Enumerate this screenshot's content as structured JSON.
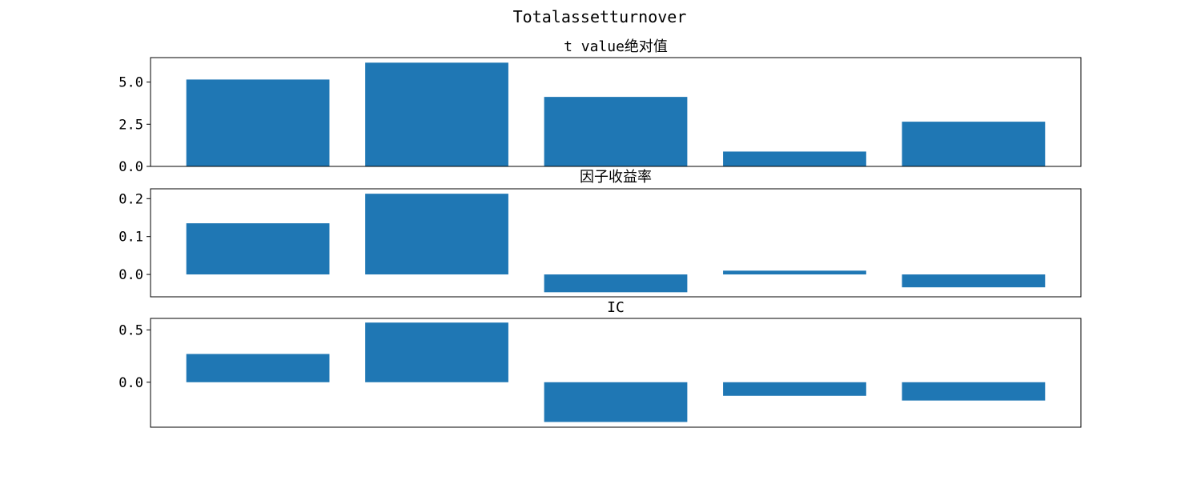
{
  "figure_title": "Totalassetturnover",
  "colors": {
    "bar": "#1f77b4",
    "axes": "#000000",
    "background": "#ffffff"
  },
  "chart_data": [
    {
      "type": "bar",
      "title": "t value绝对值",
      "categories": [
        "",
        "",
        "",
        "",
        ""
      ],
      "values": [
        5.15,
        6.15,
        4.12,
        0.88,
        2.65
      ],
      "ylim": [
        0,
        6.45
      ],
      "yticks": [
        0,
        2.5,
        5.0
      ],
      "ytick_labels": [
        "0.0",
        "2.5",
        "5.0"
      ],
      "xlabel": "",
      "ylabel": "",
      "grid": false,
      "legend": "none"
    },
    {
      "type": "bar",
      "title": "因子收益率",
      "categories": [
        "",
        "",
        "",
        "",
        ""
      ],
      "values": [
        0.135,
        0.213,
        -0.047,
        0.01,
        -0.034
      ],
      "ylim": [
        -0.059,
        0.226
      ],
      "yticks": [
        0,
        0.1,
        0.2
      ],
      "ytick_labels": [
        "0.0",
        "0.1",
        "0.2"
      ],
      "xlabel": "",
      "ylabel": "",
      "grid": false,
      "legend": "none"
    },
    {
      "type": "bar",
      "title": "IC",
      "categories": [
        "",
        "",
        "",
        "",
        ""
      ],
      "values": [
        0.27,
        0.57,
        -0.38,
        -0.13,
        -0.175
      ],
      "ylim": [
        -0.43,
        0.61
      ],
      "yticks": [
        0,
        0.5
      ],
      "ytick_labels": [
        "0.0",
        "0.5"
      ],
      "xlabel": "",
      "ylabel": "",
      "grid": false,
      "legend": "none"
    }
  ]
}
